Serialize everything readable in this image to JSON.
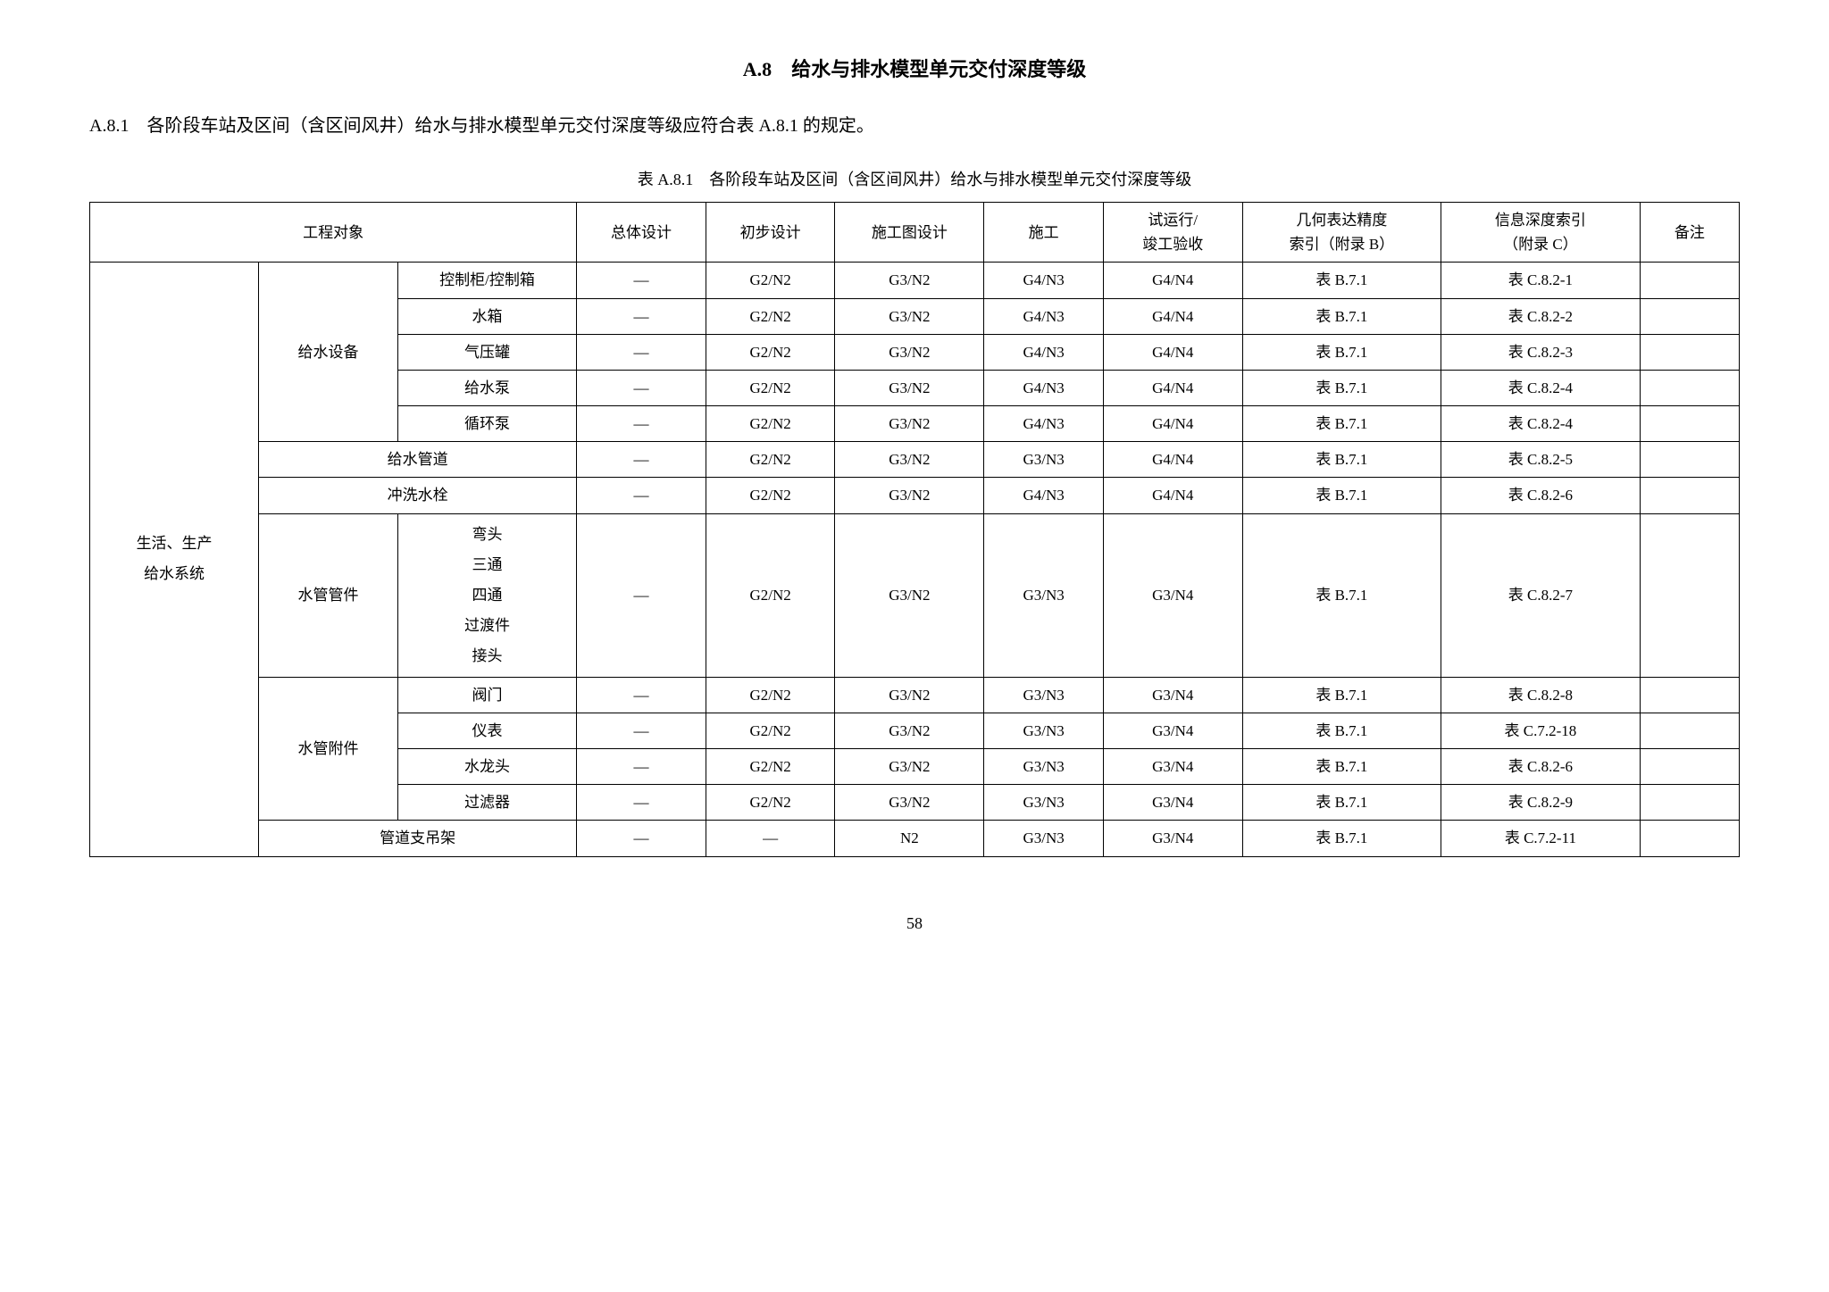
{
  "section": {
    "number": "A.8",
    "title": "给水与排水模型单元交付深度等级"
  },
  "paragraph": {
    "number": "A.8.1",
    "text": "各阶段车站及区间（含区间风井）给水与排水模型单元交付深度等级应符合表 A.8.1 的规定。"
  },
  "tableCaption": "表 A.8.1　各阶段车站及区间（含区间风井）给水与排水模型单元交付深度等级",
  "headers": {
    "engObject": "工程对象",
    "overall": "总体设计",
    "prelim": "初步设计",
    "construction": "施工图设计",
    "build": "施工",
    "trialLine1": "试运行/",
    "trialLine2": "竣工验收",
    "geoLine1": "几何表达精度",
    "geoLine2": "索引（附录 B）",
    "infoLine1": "信息深度索引",
    "infoLine2": "（附录 C）",
    "remark": "备注"
  },
  "categoryL1": "生活、生产\n给水系统",
  "groups": {
    "waterEquip": "给水设备",
    "waterPipe": "给水管道",
    "flushValve": "冲洗水栓",
    "pipeFitting": "水管管件",
    "pipeAccessory": "水管附件",
    "pipeHanger": "管道支吊架"
  },
  "pipeFittingItems": "弯头\n三通\n四通\n过渡件\n接头",
  "rows": [
    {
      "item": "控制柜/控制箱",
      "d1": "—",
      "d2": "G2/N2",
      "d3": "G3/N2",
      "d4": "G4/N3",
      "d5": "G4/N4",
      "geo": "表 B.7.1",
      "info": "表 C.8.2-1"
    },
    {
      "item": "水箱",
      "d1": "—",
      "d2": "G2/N2",
      "d3": "G3/N2",
      "d4": "G4/N3",
      "d5": "G4/N4",
      "geo": "表 B.7.1",
      "info": "表 C.8.2-2"
    },
    {
      "item": "气压罐",
      "d1": "—",
      "d2": "G2/N2",
      "d3": "G3/N2",
      "d4": "G4/N3",
      "d5": "G4/N4",
      "geo": "表 B.7.1",
      "info": "表 C.8.2-3"
    },
    {
      "item": "给水泵",
      "d1": "—",
      "d2": "G2/N2",
      "d3": "G3/N2",
      "d4": "G4/N3",
      "d5": "G4/N4",
      "geo": "表 B.7.1",
      "info": "表 C.8.2-4"
    },
    {
      "item": "循环泵",
      "d1": "—",
      "d2": "G2/N2",
      "d3": "G3/N2",
      "d4": "G4/N3",
      "d5": "G4/N4",
      "geo": "表 B.7.1",
      "info": "表 C.8.2-4"
    },
    {
      "d1": "—",
      "d2": "G2/N2",
      "d3": "G3/N2",
      "d4": "G3/N3",
      "d5": "G4/N4",
      "geo": "表 B.7.1",
      "info": "表 C.8.2-5"
    },
    {
      "d1": "—",
      "d2": "G2/N2",
      "d3": "G3/N2",
      "d4": "G4/N3",
      "d5": "G4/N4",
      "geo": "表 B.7.1",
      "info": "表 C.8.2-6"
    },
    {
      "d1": "—",
      "d2": "G2/N2",
      "d3": "G3/N2",
      "d4": "G3/N3",
      "d5": "G3/N4",
      "geo": "表 B.7.1",
      "info": "表 C.8.2-7"
    },
    {
      "item": "阀门",
      "d1": "—",
      "d2": "G2/N2",
      "d3": "G3/N2",
      "d4": "G3/N3",
      "d5": "G3/N4",
      "geo": "表 B.7.1",
      "info": "表 C.8.2-8"
    },
    {
      "item": "仪表",
      "d1": "—",
      "d2": "G2/N2",
      "d3": "G3/N2",
      "d4": "G3/N3",
      "d5": "G3/N4",
      "geo": "表 B.7.1",
      "info": "表 C.7.2-18"
    },
    {
      "item": "水龙头",
      "d1": "—",
      "d2": "G2/N2",
      "d3": "G3/N2",
      "d4": "G3/N3",
      "d5": "G3/N4",
      "geo": "表 B.7.1",
      "info": "表 C.8.2-6"
    },
    {
      "item": "过滤器",
      "d1": "—",
      "d2": "G2/N2",
      "d3": "G3/N2",
      "d4": "G3/N3",
      "d5": "G3/N4",
      "geo": "表 B.7.1",
      "info": "表 C.8.2-9"
    },
    {
      "d1": "—",
      "d2": "—",
      "d3": "N2",
      "d4": "G3/N3",
      "d5": "G3/N4",
      "geo": "表 B.7.1",
      "info": "表 C.7.2-11"
    }
  ],
  "pageNumber": "58"
}
